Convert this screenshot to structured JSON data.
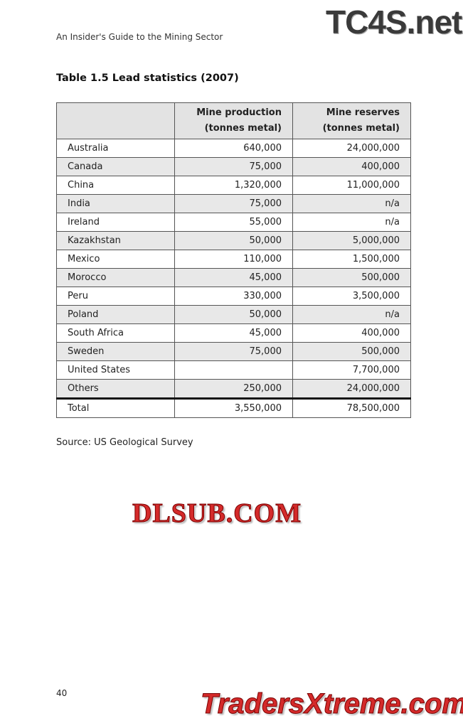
{
  "header": {
    "running_title": "An Insider's Guide to the Mining Sector",
    "logo": "TC4S.net"
  },
  "caption": "Table 1.5 Lead statistics (2007)",
  "table": {
    "columns": [
      "",
      "Mine production (tonnes metal)",
      "Mine reserves (tonnes metal)"
    ],
    "col1_line1": "Mine production",
    "col1_line2": "(tonnes metal)",
    "col2_line1": "Mine reserves",
    "col2_line2": "(tonnes metal)",
    "rows": [
      [
        "Australia",
        "640,000",
        "24,000,000"
      ],
      [
        "Canada",
        "75,000",
        "400,000"
      ],
      [
        "China",
        "1,320,000",
        "11,000,000"
      ],
      [
        "India",
        "75,000",
        "n/a"
      ],
      [
        "Ireland",
        "55,000",
        "n/a"
      ],
      [
        "Kazakhstan",
        "50,000",
        "5,000,000"
      ],
      [
        "Mexico",
        "110,000",
        "1,500,000"
      ],
      [
        "Morocco",
        "45,000",
        "500,000"
      ],
      [
        "Peru",
        "330,000",
        "3,500,000"
      ],
      [
        "Poland",
        "50,000",
        "n/a"
      ],
      [
        "South Africa",
        "45,000",
        "400,000"
      ],
      [
        "Sweden",
        "75,000",
        "500,000"
      ],
      [
        "United States",
        "",
        "7,700,000"
      ],
      [
        "Others",
        "250,000",
        "24,000,000"
      ]
    ],
    "total": [
      "Total",
      "3,550,000",
      "78,500,000"
    ]
  },
  "source": "Source: US Geological Survey",
  "page_number": "40",
  "watermarks": [
    "DLSUB.COM",
    "TradersXtreme.com"
  ]
}
